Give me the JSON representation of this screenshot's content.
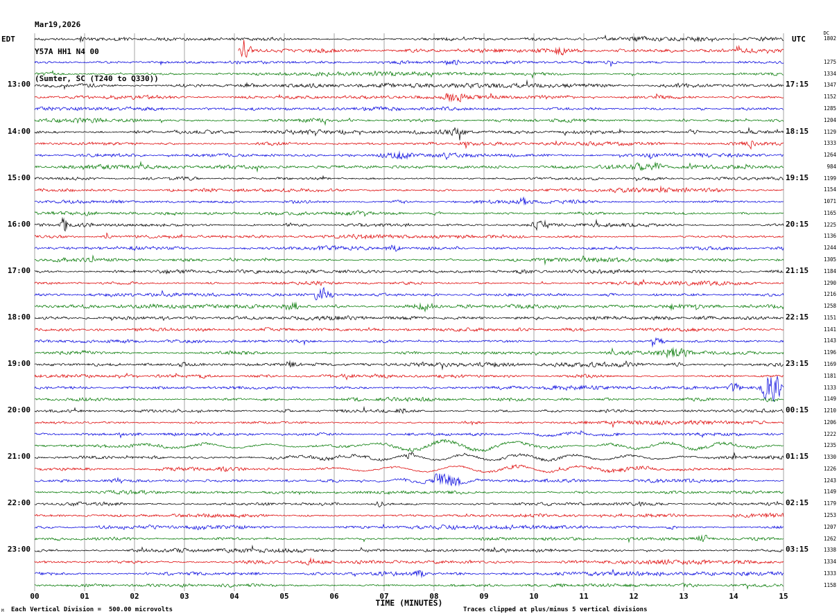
{
  "header": {
    "date": "Mar19,2026",
    "station": "Y57A HH1 N4 00",
    "location": "(Sumter, SC (T240 to Q330))"
  },
  "axes": {
    "left_tz": "EDT",
    "right_tz": "UTC",
    "dc_header": "DC",
    "xlabel": "TIME (MINUTES)"
  },
  "footer": {
    "scale_note": "Each Vertical Division =  500.00 microvolts",
    "clip_note": "Traces clipped at plus/minus 5 vertical divisions",
    "corner_mark": "M"
  },
  "chart_data": {
    "type": "line",
    "subtype": "helicorder-seismogram",
    "title": "Y57A HH1 N4 00 (Sumter, SC (T240 to Q330)) Mar19,2026",
    "xlabel": "TIME (MINUTES)",
    "x_axis": {
      "min": 0,
      "max": 15,
      "ticks": [
        "00",
        "01",
        "02",
        "03",
        "04",
        "05",
        "06",
        "07",
        "08",
        "09",
        "10",
        "11",
        "12",
        "13",
        "14",
        "15"
      ]
    },
    "minutes_per_row": 15,
    "rows_per_hour": 4,
    "clip_divisions": 5,
    "microvolts_per_division": "500.00",
    "grid_color": "#909090",
    "trace_color_cycle": [
      "#000000",
      "#dd0000",
      "#0000dd",
      "#007700"
    ],
    "rows": [
      {
        "c": 0,
        "dc": "1802",
        "a": 1.1,
        "ev": [
          {
            "t0": 0.82,
            "t1": 1.0,
            "amp": 7
          },
          {
            "t0": 11.9,
            "t1": 12.25,
            "amp": 3
          }
        ]
      },
      {
        "c": 1,
        "s": 4.08,
        "a": 1.2,
        "ev": [
          {
            "t0": 4.08,
            "t1": 4.4,
            "amp": 11
          },
          {
            "t0": 10.4,
            "t1": 10.65,
            "amp": 4
          }
        ]
      },
      {
        "c": 2,
        "dc": "1275",
        "ev": [
          {
            "t0": 8.2,
            "t1": 8.55,
            "amp": 4
          }
        ]
      },
      {
        "c": 3,
        "dc": "1334",
        "ev": [
          {
            "t0": 8.25,
            "t1": 8.5,
            "amp": 3
          }
        ]
      },
      {
        "c": 0,
        "ll": "13:00",
        "rl": "17:15",
        "dc": "1347",
        "a": 1.05
      },
      {
        "c": 1,
        "dc": "1152",
        "ev": [
          {
            "t0": 8.15,
            "t1": 8.7,
            "amp": 4
          }
        ]
      },
      {
        "c": 2,
        "dc": "1285",
        "ev": [
          {
            "t0": 13.2,
            "t1": 13.5,
            "amp": 3
          }
        ]
      },
      {
        "c": 3,
        "dc": "1204",
        "ev": [
          {
            "t0": 12.9,
            "t1": 13.15,
            "amp": 3
          }
        ]
      },
      {
        "c": 0,
        "ll": "14:00",
        "rl": "18:15",
        "dc": "1129",
        "ev": [
          {
            "t0": 8.0,
            "t1": 9.0,
            "amp": 3
          },
          {
            "t0": 13.0,
            "t1": 13.35,
            "amp": 4
          }
        ]
      },
      {
        "c": 1,
        "dc": "1333",
        "ev": [
          {
            "t0": 14.15,
            "t1": 14.45,
            "amp": 4
          }
        ]
      },
      {
        "c": 2,
        "dc": "1264",
        "ev": [
          {
            "t0": 6.8,
            "t1": 7.6,
            "amp": 4
          }
        ]
      },
      {
        "c": 3,
        "dc": "984",
        "a": 1.1,
        "ev": [
          {
            "t0": 11.8,
            "t1": 12.6,
            "amp": 3
          }
        ]
      },
      {
        "c": 0,
        "ll": "15:00",
        "rl": "19:15",
        "dc": "1199"
      },
      {
        "c": 1,
        "dc": "1154"
      },
      {
        "c": 2,
        "dc": "1071",
        "ev": [
          {
            "t0": 9.6,
            "t1": 9.95,
            "amp": 3
          }
        ]
      },
      {
        "c": 3,
        "dc": "1165",
        "ev": [
          {
            "t0": 7.85,
            "t1": 8.25,
            "amp": 4
          }
        ]
      },
      {
        "c": 0,
        "ll": "16:00",
        "rl": "20:15",
        "dc": "1225",
        "ev": [
          {
            "t0": 0.5,
            "t1": 0.68,
            "amp": 10
          },
          {
            "t0": 7.3,
            "t1": 7.55,
            "amp": 4
          },
          {
            "t0": 9.9,
            "t1": 10.35,
            "amp": 5
          }
        ]
      },
      {
        "c": 1,
        "dc": "1136",
        "ev": [
          {
            "t0": 1.3,
            "t1": 1.6,
            "amp": 3
          }
        ]
      },
      {
        "c": 2,
        "dc": "1244",
        "ev": [
          {
            "t0": 7.0,
            "t1": 7.35,
            "amp": 4
          }
        ]
      },
      {
        "c": 3,
        "dc": "1305",
        "ev": [
          {
            "t0": 2.0,
            "t1": 2.3,
            "amp": 3
          }
        ]
      },
      {
        "c": 0,
        "ll": "17:00",
        "rl": "21:15",
        "dc": "1184",
        "a": 1.1
      },
      {
        "c": 1,
        "dc": "1290"
      },
      {
        "c": 2,
        "dc": "1216",
        "ev": [
          {
            "t0": 5.55,
            "t1": 5.95,
            "amp": 5
          }
        ]
      },
      {
        "c": 3,
        "dc": "1258",
        "a": 1.1,
        "ev": [
          {
            "t0": 5.0,
            "t1": 5.3,
            "amp": 4
          },
          {
            "t0": 7.1,
            "t1": 8.3,
            "amp": 5
          },
          {
            "t0": 12.3,
            "t1": 13.9,
            "amp": 5
          }
        ]
      },
      {
        "c": 0,
        "ll": "18:00",
        "rl": "22:15",
        "dc": "1151"
      },
      {
        "c": 1,
        "dc": "1141"
      },
      {
        "c": 2,
        "dc": "1143",
        "ev": [
          {
            "t0": 12.3,
            "t1": 12.65,
            "amp": 5
          }
        ]
      },
      {
        "c": 3,
        "dc": "1196",
        "ev": [
          {
            "t0": 12.4,
            "t1": 13.2,
            "amp": 4
          }
        ]
      },
      {
        "c": 0,
        "ll": "19:00",
        "rl": "23:15",
        "dc": "1169",
        "a": 1.25,
        "ev": [
          {
            "t0": 5.0,
            "t1": 5.25,
            "amp": 4
          },
          {
            "t0": 12.65,
            "t1": 13.05,
            "amp": 5
          }
        ]
      },
      {
        "c": 1,
        "dc": "1181"
      },
      {
        "c": 2,
        "dc": "1133",
        "ev": [
          {
            "t0": 13.9,
            "t1": 14.15,
            "amp": 4
          },
          {
            "t0": 14.5,
            "t1": 15.0,
            "amp": 19
          }
        ]
      },
      {
        "c": 3,
        "dc": "1149",
        "ev": [
          {
            "t0": 14.6,
            "t1": 15.0,
            "amp": 4
          }
        ]
      },
      {
        "c": 0,
        "ll": "20:00",
        "rl": "00:15",
        "dc": "1210",
        "ev": [
          {
            "t0": 4.9,
            "t1": 5.15,
            "amp": 5
          },
          {
            "t0": 7.2,
            "t1": 7.45,
            "amp": 4
          }
        ]
      },
      {
        "c": 1,
        "dc": "1206"
      },
      {
        "c": 2,
        "dc": "1222",
        "ev": [
          {
            "t0": 9.0,
            "t1": 12.0,
            "amp": 2,
            "lp": 1,
            "f": 0.9
          }
        ]
      },
      {
        "c": 3,
        "dc": "1235",
        "ev": [
          {
            "t0": 1.0,
            "t1": 6.0,
            "amp": 3,
            "lp": 1,
            "f": 0.8
          },
          {
            "t0": 6.0,
            "t1": 11.0,
            "amp": 7,
            "lp": 1,
            "f": 0.7
          },
          {
            "t0": 11.0,
            "t1": 15.0,
            "amp": 5,
            "lp": 1,
            "f": 0.85
          }
        ]
      },
      {
        "c": 0,
        "ll": "21:00",
        "rl": "01:15",
        "dc": "1330",
        "ev": [
          {
            "t0": 4.0,
            "t1": 14.5,
            "amp": 4,
            "lp": 1,
            "f": 0.9
          },
          {
            "t0": 7.4,
            "t1": 7.65,
            "amp": 4
          }
        ]
      },
      {
        "c": 1,
        "dc": "1226",
        "ev": [
          {
            "t0": 5.0,
            "t1": 13.5,
            "amp": 4.5,
            "lp": 1,
            "f": 0.8
          }
        ]
      },
      {
        "c": 2,
        "dc": "1243",
        "ev": [
          {
            "t0": 1.5,
            "t1": 1.85,
            "amp": 3
          },
          {
            "t0": 6.5,
            "t1": 9.5,
            "amp": 3,
            "lp": 1,
            "f": 1.2
          },
          {
            "t0": 7.9,
            "t1": 8.6,
            "amp": 8
          }
        ]
      },
      {
        "c": 3,
        "dc": "1149"
      },
      {
        "c": 0,
        "ll": "22:00",
        "rl": "02:15",
        "dc": "1179",
        "ev": [
          {
            "t0": 6.8,
            "t1": 7.05,
            "amp": 3
          }
        ]
      },
      {
        "c": 1,
        "dc": "1253"
      },
      {
        "c": 2,
        "dc": "1207",
        "ev": [
          {
            "t0": 12.6,
            "t1": 12.95,
            "amp": 4
          }
        ]
      },
      {
        "c": 3,
        "dc": "1262",
        "ev": [
          {
            "t0": 11.6,
            "t1": 12.4,
            "amp": 3
          },
          {
            "t0": 13.2,
            "t1": 13.55,
            "amp": 4
          }
        ]
      },
      {
        "c": 0,
        "ll": "23:00",
        "rl": "03:15",
        "dc": "1338"
      },
      {
        "c": 1,
        "dc": "1334",
        "ev": [
          {
            "t0": 5.3,
            "t1": 5.65,
            "amp": 3
          }
        ]
      },
      {
        "c": 2,
        "dc": "1333",
        "ev": [
          {
            "t0": 7.5,
            "t1": 7.85,
            "amp": 3
          }
        ]
      },
      {
        "c": 3,
        "dc": "1158",
        "ev": [
          {
            "t0": 8.3,
            "t1": 8.65,
            "amp": 3
          }
        ]
      }
    ]
  }
}
